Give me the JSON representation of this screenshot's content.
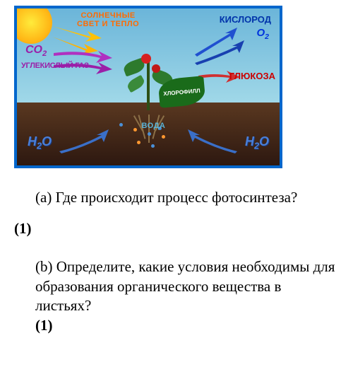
{
  "diagram": {
    "type": "infographic",
    "topic": "photosynthesis",
    "border_color": "#0066cc",
    "sky_colors": [
      "#6bb5d9",
      "#a0d8e8"
    ],
    "ground_colors": [
      "#5a3820",
      "#2d1810"
    ],
    "sun_colors": [
      "#ffeb3b",
      "#ff9800"
    ],
    "labels": {
      "sunlight": "СОЛНЕЧНЫЕ\nСВЕТ И ТЕПЛО",
      "sunlight_color": "#ff6b00",
      "oxygen": "КИСЛОРОД",
      "oxygen_color": "#0033aa",
      "o2_formula": "O",
      "o2_sub": "2",
      "o2_color": "#0033dd",
      "co2_formula": "CO",
      "co2_sub": "2",
      "co2_text": "УГЛЕКИСЛЫЙ ГАЗ",
      "co2_color": "#9b1fa8",
      "glucose": "ГЛЮКОЗА",
      "glucose_color": "#cc0000",
      "chlorophyll": "ХЛОРОФИЛЛ",
      "chlorophyll_bg": "#1a6b1a",
      "chlorophyll_text_color": "#ffffff",
      "water": "ВОДА",
      "water_color": "#5ab4d8",
      "h2o_formula": "H",
      "h2o_sub": "2",
      "h2o_suffix": "O",
      "h2o_color": "#4a7fd8"
    },
    "arrows": {
      "sunlight_color": "#ffc107",
      "co2_color": "#b030c0",
      "oxygen_color": "#2050d0",
      "glucose_color": "#d03030",
      "water_color": "#3a6fc8"
    },
    "plant": {
      "stem_color": "#2d5016",
      "leaf_color": "#2d7a2d",
      "flower_color": "#d62020",
      "root_color": "#8b6f47"
    },
    "particles": {
      "blue": "#4a90d8",
      "orange": "#ff9830"
    }
  },
  "questions": {
    "a": {
      "label": "(a)",
      "text": "Где происходит процесс фотосинтеза?",
      "points": "(1)"
    },
    "b": {
      "label": "(b)",
      "text": "Определите, какие условия необходимы для образования органического вещества в листьях?",
      "points": "(1)"
    }
  },
  "typography": {
    "question_fontsize": 21,
    "diagram_label_fontsize_small": 11,
    "diagram_label_fontsize_large": 16
  }
}
